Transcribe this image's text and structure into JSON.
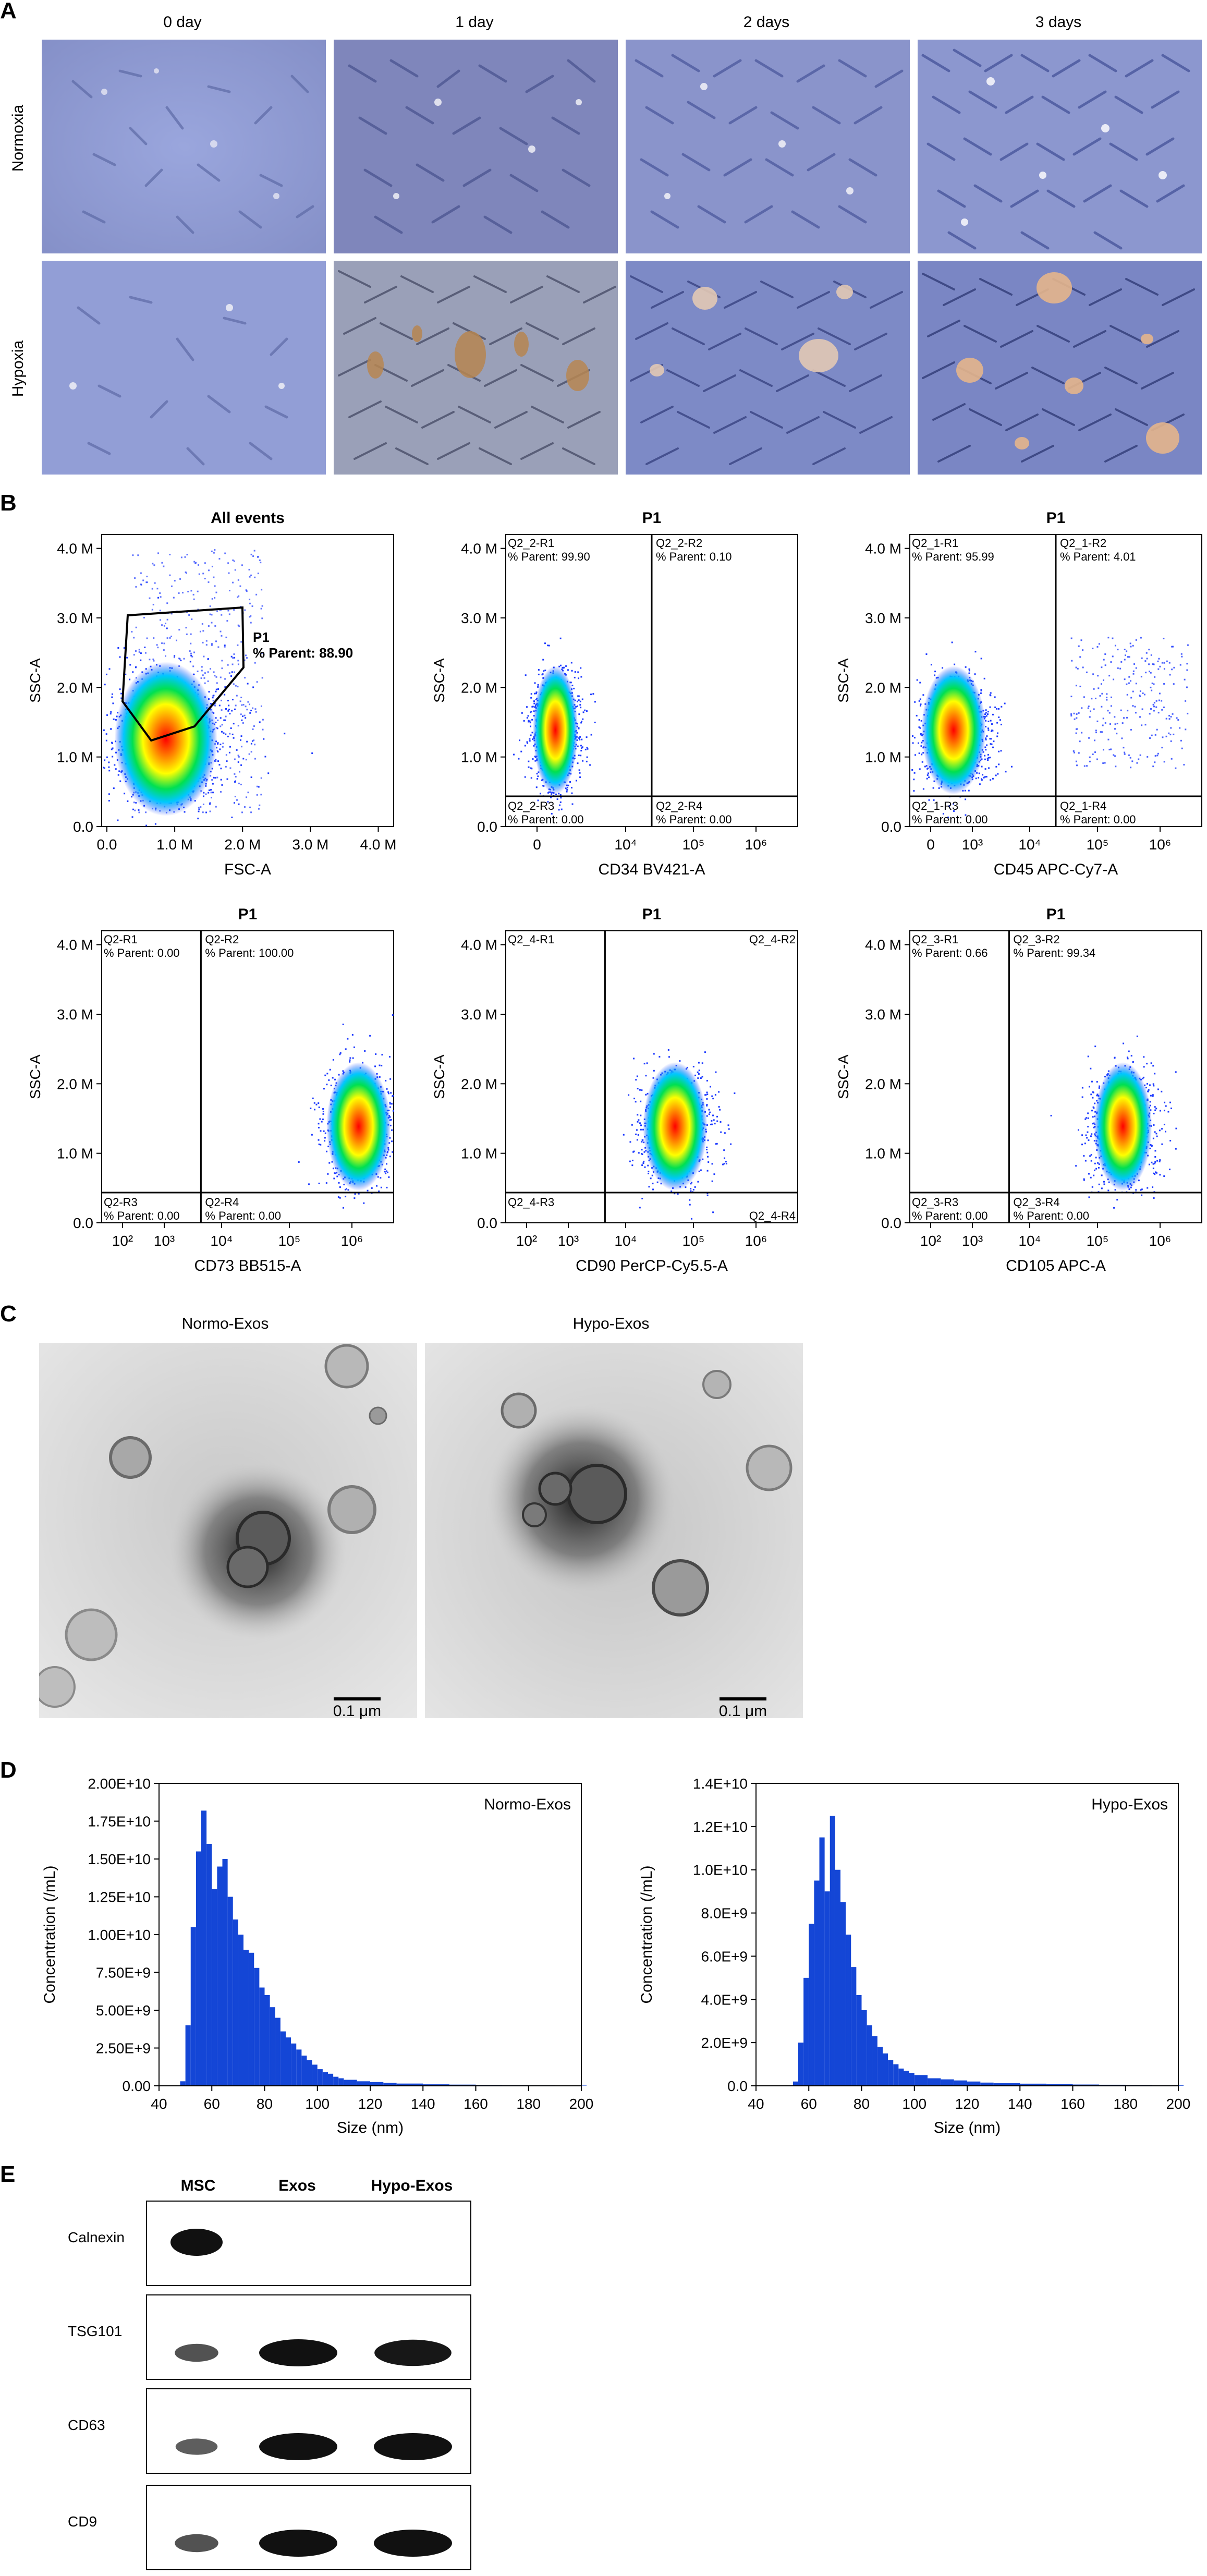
{
  "panelA": {
    "label": "A",
    "columns": [
      "0 day",
      "1 day",
      "2 days",
      "3 days"
    ],
    "rows": [
      "Normoxia",
      "Hypoxia"
    ]
  },
  "panelB": {
    "label": "B",
    "plots": [
      {
        "title": "All events",
        "xlabel": "FSC-A",
        "ylabel": "SSC-A",
        "yticks": [
          "0.0",
          "1.0 M",
          "2.0 M",
          "3.0 M",
          "4.0 M"
        ],
        "xticks": [
          "0.0",
          "1.0 M",
          "2.0 M",
          "3.0 M",
          "4.0 M"
        ],
        "gate": "P1",
        "gate_text": "% Parent: 88.90"
      },
      {
        "title": "P1",
        "xlabel": "CD34 BV421-A",
        "ylabel": "SSC-A",
        "yticks": [
          "0.0",
          "1.0 M",
          "2.0 M",
          "3.0 M",
          "4.0 M"
        ],
        "xticks": [
          "0",
          "10⁴",
          "10⁵",
          "10⁶"
        ],
        "quads": [
          {
            "n": "Q2_2-R1",
            "v": "% Parent: 99.90"
          },
          {
            "n": "Q2_2-R2",
            "v": "% Parent: 0.10"
          },
          {
            "n": "Q2_2-R3",
            "v": "% Parent: 0.00"
          },
          {
            "n": "Q2_2-R4",
            "v": "% Parent: 0.00"
          }
        ]
      },
      {
        "title": "P1",
        "xlabel": "CD45 APC-Cy7-A",
        "ylabel": "SSC-A",
        "yticks": [
          "0.0",
          "1.0 M",
          "2.0 M",
          "3.0 M",
          "4.0 M"
        ],
        "xticks": [
          "0",
          "10³",
          "10⁴",
          "10⁵",
          "10⁶"
        ],
        "quads": [
          {
            "n": "Q2_1-R1",
            "v": "% Parent: 95.99"
          },
          {
            "n": "Q2_1-R2",
            "v": "% Parent: 4.01"
          },
          {
            "n": "Q2_1-R3",
            "v": "% Parent: 0.00"
          },
          {
            "n": "Q2_1-R4",
            "v": "% Parent: 0.00"
          }
        ]
      },
      {
        "title": "P1",
        "xlabel": "CD73 BB515-A",
        "ylabel": "SSC-A",
        "yticks": [
          "0.0",
          "1.0 M",
          "2.0 M",
          "3.0 M",
          "4.0 M"
        ],
        "xticks": [
          "10²",
          "10³",
          "10⁴",
          "10⁵",
          "10⁶"
        ],
        "quads": [
          {
            "n": "Q2-R1",
            "v": "% Parent: 0.00"
          },
          {
            "n": "Q2-R2",
            "v": "% Parent: 100.00"
          },
          {
            "n": "Q2-R3",
            "v": "% Parent: 0.00"
          },
          {
            "n": "Q2-R4",
            "v": "% Parent: 0.00"
          }
        ]
      },
      {
        "title": "P1",
        "xlabel": "CD90 PerCP-Cy5.5-A",
        "ylabel": "SSC-A",
        "yticks": [
          "0.0",
          "1.0 M",
          "2.0 M",
          "3.0 M",
          "4.0 M"
        ],
        "xticks": [
          "10²",
          "10³",
          "10⁴",
          "10⁵",
          "10⁶"
        ],
        "quads": [
          {
            "n": "Q2_4-R1",
            "v": ""
          },
          {
            "n": "Q2_4-R2",
            "v": ""
          },
          {
            "n": "Q2_4-R3",
            "v": ""
          },
          {
            "n": "Q2_4-R4",
            "v": ""
          }
        ]
      },
      {
        "title": "P1",
        "xlabel": "CD105 APC-A",
        "ylabel": "SSC-A",
        "yticks": [
          "0.0",
          "1.0 M",
          "2.0 M",
          "3.0 M",
          "4.0 M"
        ],
        "xticks": [
          "10²",
          "10³",
          "10⁴",
          "10⁵",
          "10⁶"
        ],
        "quads": [
          {
            "n": "Q2_3-R1",
            "v": "% Parent: 0.66"
          },
          {
            "n": "Q2_3-R2",
            "v": "% Parent: 99.34"
          },
          {
            "n": "Q2_3-R3",
            "v": "% Parent: 0.00"
          },
          {
            "n": "Q2_3-R4",
            "v": "% Parent: 0.00"
          }
        ]
      }
    ]
  },
  "panelC": {
    "label": "C",
    "images": [
      {
        "title": "Normo-Exos",
        "scale": "0.1 μm"
      },
      {
        "title": "Hypo-Exos",
        "scale": "0.1 μm"
      }
    ]
  },
  "panelD": {
    "label": "D"
  },
  "chart_data": [
    {
      "type": "bar",
      "title": "",
      "legend": "Normo-Exos",
      "xlabel": "Size (nm)",
      "ylabel": "Concentration (/mL)",
      "xlim": [
        40,
        200
      ],
      "ylim": [
        0,
        20000000000
      ],
      "xticks": [
        "40",
        "60",
        "80",
        "100",
        "120",
        "140",
        "160",
        "180",
        "200"
      ],
      "yticks": [
        "0.00",
        "2.50E+9",
        "5.00E+9",
        "7.50E+9",
        "1.00E+10",
        "1.25E+10",
        "1.50E+10",
        "1.75E+10",
        "2.00E+10"
      ],
      "x": [
        48,
        50,
        52,
        54,
        56,
        58,
        60,
        62,
        64,
        66,
        68,
        70,
        72,
        74,
        76,
        78,
        80,
        82,
        84,
        86,
        88,
        90,
        92,
        94,
        96,
        98,
        100,
        102,
        104,
        106,
        108,
        110,
        115,
        120,
        125,
        130,
        140,
        150,
        160,
        170,
        180,
        190,
        200
      ],
      "values": [
        300000000.0,
        4000000000.0,
        10500000000.0,
        15500000000.0,
        18200000000.0,
        16000000000.0,
        13000000000.0,
        14500000000.0,
        15000000000.0,
        12500000000.0,
        11000000000.0,
        10000000000.0,
        9000000000.0,
        8800000000.0,
        7800000000.0,
        6500000000.0,
        6000000000.0,
        5200000000.0,
        4500000000.0,
        3600000000.0,
        3200000000.0,
        2800000000.0,
        2400000000.0,
        2000000000.0,
        1700000000.0,
        1400000000.0,
        1100000000.0,
        900000000.0,
        800000000.0,
        600000000.0,
        500000000.0,
        400000000.0,
        300000000.0,
        250000000.0,
        200000000.0,
        150000000.0,
        100000000.0,
        80000000.0,
        60000000.0,
        50000000.0,
        40000000.0,
        30000000.0,
        20000000.0
      ]
    },
    {
      "type": "bar",
      "title": "",
      "legend": "Hypo-Exos",
      "xlabel": "Size (nm)",
      "ylabel": "Concentration (/mL)",
      "xlim": [
        40,
        200
      ],
      "ylim": [
        0,
        14000000000
      ],
      "xticks": [
        "40",
        "60",
        "80",
        "100",
        "120",
        "140",
        "160",
        "180",
        "200"
      ],
      "yticks": [
        "0.0",
        "2.0E+9",
        "4.0E+9",
        "6.0E+9",
        "8.0E+9",
        "1.0E+10",
        "1.2E+10",
        "1.4E+10"
      ],
      "x": [
        54,
        56,
        58,
        60,
        62,
        64,
        66,
        68,
        70,
        72,
        74,
        76,
        78,
        80,
        82,
        84,
        86,
        88,
        90,
        92,
        94,
        96,
        98,
        100,
        105,
        110,
        115,
        120,
        125,
        130,
        140,
        150,
        160,
        170,
        180,
        190,
        200
      ],
      "values": [
        200000000.0,
        2000000000.0,
        5000000000.0,
        7500000000.0,
        9500000000.0,
        11500000000.0,
        9000000000.0,
        12500000000.0,
        10000000000.0,
        8500000000.0,
        7000000000.0,
        5500000000.0,
        4200000000.0,
        3500000000.0,
        2800000000.0,
        2300000000.0,
        1800000000.0,
        1500000000.0,
        1200000000.0,
        1000000000.0,
        800000000.0,
        700000000.0,
        600000000.0,
        500000000.0,
        350000000.0,
        300000000.0,
        250000000.0,
        200000000.0,
        150000000.0,
        120000000.0,
        100000000.0,
        80000000.0,
        60000000.0,
        50000000.0,
        40000000.0,
        30000000.0,
        20000000.0
      ]
    }
  ],
  "panelE": {
    "label": "E",
    "lanes": [
      "MSC",
      "Exos",
      "Hypo-Exos"
    ],
    "blots": [
      {
        "name": "Calnexin",
        "bands": [
          1.0,
          0.0,
          0.0
        ]
      },
      {
        "name": "TSG101",
        "bands": [
          0.45,
          1.0,
          0.95
        ]
      },
      {
        "name": "CD63",
        "bands": [
          0.35,
          1.0,
          1.0
        ]
      },
      {
        "name": "CD9",
        "bands": [
          0.45,
          1.0,
          1.0
        ]
      }
    ]
  }
}
